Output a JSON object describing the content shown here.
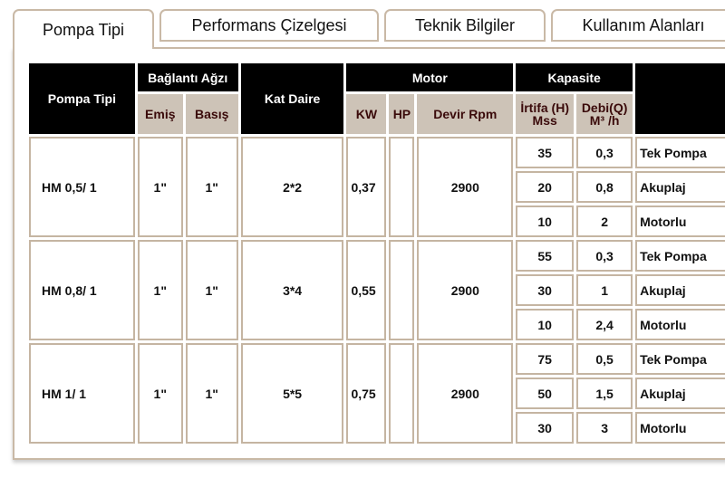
{
  "tabs": [
    "Pompa Tipi",
    "Performans Çizelgesi",
    "Teknik Bilgiler",
    "Kullanım Alanları"
  ],
  "header": {
    "pompa_tipi": "Pompa Tipi",
    "baglanti": "Bağlantı Ağzı",
    "emis": "Emiş",
    "basis": "Basış",
    "kat_daire": "Kat Daire",
    "motor": "Motor",
    "kw": "KW",
    "hp": "HP",
    "devir": "Devir Rpm",
    "kapasite": "Kapasite",
    "irtifa": "İrtifa (H) Mss",
    "debi": "Debi(Q) M³ /h",
    "last": ""
  },
  "rows": [
    {
      "tip": "HM 0,5/ 1",
      "emis": "1\"",
      "basis": "1\"",
      "kat": "2*2",
      "kw": "0,37",
      "hp": "",
      "devir": "2900",
      "sub": [
        {
          "h": "35",
          "q": "0,3",
          "t": "Tek Pompa"
        },
        {
          "h": "20",
          "q": "0,8",
          "t": "Akuplaj"
        },
        {
          "h": "10",
          "q": "2",
          "t": "Motorlu"
        }
      ]
    },
    {
      "tip": "HM 0,8/ 1",
      "emis": "1\"",
      "basis": "1\"",
      "kat": "3*4",
      "kw": "0,55",
      "hp": "",
      "devir": "2900",
      "sub": [
        {
          "h": "55",
          "q": "0,3",
          "t": "Tek Pompa"
        },
        {
          "h": "30",
          "q": "1",
          "t": "Akuplaj"
        },
        {
          "h": "10",
          "q": "2,4",
          "t": "Motorlu"
        }
      ]
    },
    {
      "tip": "HM 1/ 1",
      "emis": "1\"",
      "basis": "1\"",
      "kat": "5*5",
      "kw": "0,75",
      "hp": "",
      "devir": "2900",
      "sub": [
        {
          "h": "75",
          "q": "0,5",
          "t": "Tek Pompa"
        },
        {
          "h": "50",
          "q": "1,5",
          "t": "Akuplaj"
        },
        {
          "h": "30",
          "q": "3",
          "t": "Motorlu"
        }
      ]
    }
  ]
}
